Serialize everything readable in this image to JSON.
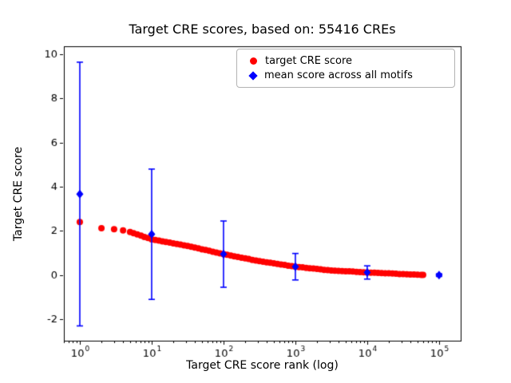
{
  "figure": {
    "title": "Target CRE scores, based on: 55416 CREs",
    "xlabel": "Target CRE score rank (log)",
    "ylabel": "Target CRE score"
  },
  "legend": {
    "items": [
      {
        "label": "target CRE score",
        "marker": "circle",
        "color": "#ff0000"
      },
      {
        "label": "mean score across all motifs",
        "marker": "diamond",
        "color": "#0000ff"
      }
    ]
  },
  "chart_data": {
    "type": "scatter",
    "title": "Target CRE scores, based on: 55416 CREs",
    "xlabel": "Target CRE score rank (log)",
    "ylabel": "Target CRE score",
    "xscale": "log",
    "grid": false,
    "legend_position": "upper right",
    "xlim": [
      0.6,
      200000
    ],
    "ylim": [
      -2.97,
      10.36
    ],
    "xticks": [
      1,
      10,
      100,
      1000,
      10000,
      100000
    ],
    "xtick_labels": [
      "10^0",
      "10^1",
      "10^2",
      "10^3",
      "10^4",
      "10^5"
    ],
    "yticks": [
      -2,
      0,
      2,
      4,
      6,
      8,
      10
    ],
    "ytick_labels": [
      "-2",
      "0",
      "2",
      "4",
      "6",
      "8",
      "10"
    ],
    "series": [
      {
        "name": "target CRE score",
        "marker": "circle",
        "color": "#ff0000",
        "points": [
          [
            1,
            2.4
          ],
          [
            2,
            2.12
          ],
          [
            3,
            2.08
          ],
          [
            4,
            2.02
          ],
          [
            5,
            1.95
          ],
          [
            5.6,
            1.9
          ],
          [
            6.3,
            1.84
          ],
          [
            7.1,
            1.79
          ],
          [
            7.9,
            1.73
          ],
          [
            8.9,
            1.68
          ],
          [
            10,
            1.62
          ],
          [
            11.2,
            1.59
          ],
          [
            12.6,
            1.56
          ],
          [
            14.1,
            1.53
          ],
          [
            15.8,
            1.5
          ],
          [
            17.8,
            1.47
          ],
          [
            20,
            1.44
          ],
          [
            22.4,
            1.41
          ],
          [
            25.1,
            1.38
          ],
          [
            28.2,
            1.35
          ],
          [
            31.6,
            1.32
          ],
          [
            35.5,
            1.28
          ],
          [
            39.8,
            1.25
          ],
          [
            44.7,
            1.21
          ],
          [
            50.1,
            1.17
          ],
          [
            56.2,
            1.14
          ],
          [
            63.1,
            1.1
          ],
          [
            70.8,
            1.06
          ],
          [
            79.4,
            1.02
          ],
          [
            89.1,
            0.99
          ],
          [
            100,
            0.95
          ],
          [
            112,
            0.92
          ],
          [
            126,
            0.89
          ],
          [
            141,
            0.85
          ],
          [
            158,
            0.82
          ],
          [
            178,
            0.79
          ],
          [
            200,
            0.76
          ],
          [
            224,
            0.73
          ],
          [
            251,
            0.69
          ],
          [
            282,
            0.66
          ],
          [
            316,
            0.63
          ],
          [
            355,
            0.61
          ],
          [
            398,
            0.58
          ],
          [
            447,
            0.56
          ],
          [
            501,
            0.53
          ],
          [
            562,
            0.51
          ],
          [
            631,
            0.48
          ],
          [
            708,
            0.46
          ],
          [
            794,
            0.43
          ],
          [
            891,
            0.41
          ],
          [
            1000,
            0.38
          ],
          [
            1122,
            0.36
          ],
          [
            1259,
            0.35
          ],
          [
            1413,
            0.33
          ],
          [
            1585,
            0.31
          ],
          [
            1778,
            0.3
          ],
          [
            1995,
            0.28
          ],
          [
            2239,
            0.26
          ],
          [
            2512,
            0.24
          ],
          [
            2818,
            0.23
          ],
          [
            3162,
            0.21
          ],
          [
            3548,
            0.2
          ],
          [
            3981,
            0.19
          ],
          [
            4467,
            0.18
          ],
          [
            5012,
            0.17
          ],
          [
            5623,
            0.17
          ],
          [
            6310,
            0.16
          ],
          [
            7079,
            0.15
          ],
          [
            7943,
            0.14
          ],
          [
            8913,
            0.13
          ],
          [
            10000,
            0.12
          ],
          [
            11220,
            0.11
          ],
          [
            12589,
            0.11
          ],
          [
            14125,
            0.1
          ],
          [
            15849,
            0.09
          ],
          [
            17783,
            0.08
          ],
          [
            19953,
            0.08
          ],
          [
            22387,
            0.07
          ],
          [
            25119,
            0.06
          ],
          [
            28184,
            0.05
          ],
          [
            31623,
            0.05
          ],
          [
            35481,
            0.04
          ],
          [
            39811,
            0.03
          ],
          [
            44668,
            0.03
          ],
          [
            50119,
            0.02
          ],
          [
            56234,
            0.01
          ],
          [
            60000,
            0.01
          ]
        ]
      },
      {
        "name": "mean score across all motifs",
        "marker": "diamond",
        "color": "#0000ff",
        "points": [
          [
            1,
            3.67
          ],
          [
            10,
            1.85
          ],
          [
            100,
            0.95
          ],
          [
            1000,
            0.38
          ],
          [
            10000,
            0.12
          ],
          [
            100000,
            0.0
          ]
        ],
        "yerr": [
          5.97,
          2.95,
          1.5,
          0.6,
          0.3,
          0.06
        ]
      }
    ]
  }
}
